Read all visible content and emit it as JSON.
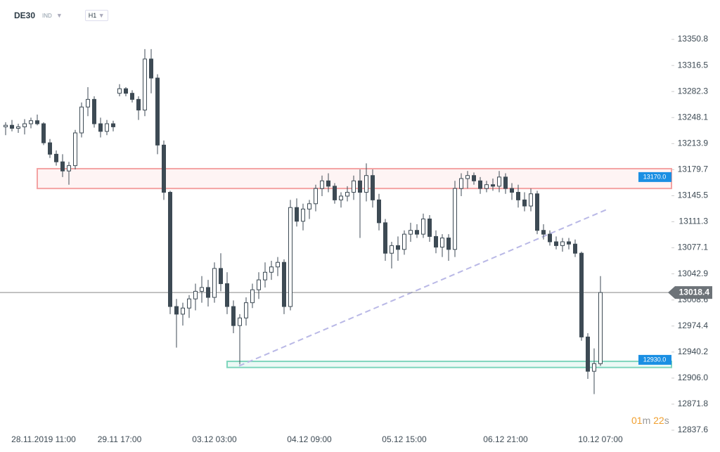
{
  "header": {
    "symbol": "DE30",
    "market": "IND",
    "interval": "H1"
  },
  "timer": {
    "minutes": "01",
    "minutes_unit": "m",
    "seconds": "22",
    "seconds_unit": "s"
  },
  "chart_data": {
    "type": "candlestick",
    "categories": [
      null,
      null,
      null,
      null,
      null,
      null,
      "28.11.2019  11:00",
      null,
      null,
      null,
      null,
      null,
      null,
      null,
      null,
      null,
      null,
      null,
      "29.11  17:00",
      null,
      null,
      null,
      null,
      null,
      null,
      null,
      null,
      null,
      null,
      null,
      null,
      null,
      null,
      "03.12  03:00",
      null,
      null,
      null,
      null,
      null,
      null,
      null,
      null,
      null,
      null,
      null,
      null,
      null,
      null,
      "04.12  09:00",
      null,
      null,
      null,
      null,
      null,
      null,
      null,
      null,
      null,
      null,
      null,
      null,
      null,
      null,
      "05.12  15:00",
      null,
      null,
      null,
      null,
      null,
      null,
      null,
      null,
      null,
      null,
      null,
      null,
      null,
      null,
      null,
      "06.12  21:00",
      null,
      null,
      null,
      null,
      null,
      null,
      null,
      null,
      null,
      null,
      null,
      null,
      null,
      null,
      "10.12  07:00"
    ],
    "open": [
      13236,
      13238,
      13234,
      13236,
      13240,
      13244,
      13240,
      13215,
      13200,
      13190,
      13178,
      13185,
      13228,
      13262,
      13272,
      13240,
      13230,
      13240,
      13280,
      13286,
      13280,
      13272,
      13258,
      13325,
      13300,
      13212,
      13150,
      13000,
      12990,
      12998,
      13010,
      13020,
      13025,
      13012,
      13050,
      13030,
      13000,
      12975,
      12985,
      13005,
      13022,
      13035,
      13045,
      13052,
      13058,
      13000,
      13130,
      13112,
      13128,
      13135,
      13155,
      13165,
      13158,
      13140,
      13145,
      13150,
      13165,
      13150,
      13172,
      13140,
      13110,
      13070,
      13080,
      13075,
      13095,
      13100,
      13095,
      13115,
      13092,
      13078,
      13090,
      13075,
      13155,
      13168,
      13172,
      13165,
      13155,
      13160,
      13158,
      13170,
      13155,
      13150,
      13140,
      13132,
      13148,
      13100,
      13095,
      13085,
      13080,
      13085,
      13082,
      13070,
      12960,
      12915,
      12925
    ],
    "high": [
      13242,
      13245,
      13240,
      13246,
      13248,
      13252,
      13242,
      13220,
      13205,
      13200,
      13190,
      13232,
      13268,
      13288,
      13276,
      13248,
      13245,
      13244,
      13292,
      13288,
      13284,
      13276,
      13338,
      13338,
      13305,
      13218,
      13152,
      13010,
      13005,
      13015,
      13030,
      13040,
      13035,
      13058,
      13070,
      13045,
      13008,
      12990,
      13012,
      13030,
      13045,
      13058,
      13060,
      13065,
      13062,
      13140,
      13142,
      13135,
      13140,
      13160,
      13172,
      13175,
      13162,
      13150,
      13158,
      13172,
      13180,
      13188,
      13180,
      13148,
      13115,
      13085,
      13092,
      13100,
      13110,
      13108,
      13122,
      13120,
      13100,
      13095,
      13095,
      13165,
      13175,
      13178,
      13176,
      13170,
      13165,
      13168,
      13178,
      13175,
      13162,
      13160,
      13150,
      13155,
      13152,
      13108,
      13100,
      13092,
      13090,
      13090,
      13088,
      13072,
      12965,
      12945,
      13040
    ],
    "low": [
      13225,
      13230,
      13228,
      13226,
      13234,
      13238,
      13212,
      13195,
      13185,
      13170,
      13160,
      13180,
      13222,
      13250,
      13235,
      13222,
      13225,
      13230,
      13276,
      13276,
      13268,
      13245,
      13250,
      13280,
      13200,
      13140,
      12990,
      12946,
      12975,
      12985,
      12995,
      13005,
      13000,
      13005,
      13020,
      12990,
      12965,
      12924,
      12975,
      12998,
      13010,
      13025,
      13035,
      13040,
      12990,
      12995,
      13105,
      13100,
      13115,
      13125,
      13145,
      13150,
      13135,
      13130,
      13138,
      13140,
      13090,
      13138,
      13130,
      13100,
      13060,
      13050,
      13060,
      13068,
      13085,
      13090,
      13090,
      13085,
      13070,
      13065,
      13060,
      13065,
      13145,
      13155,
      13160,
      13148,
      13150,
      13152,
      13150,
      13148,
      13140,
      13130,
      13125,
      13125,
      13095,
      13088,
      13080,
      13075,
      13072,
      13075,
      13065,
      12955,
      12905,
      12885,
      12922
    ],
    "close": [
      13238,
      13234,
      13236,
      13240,
      13244,
      13240,
      13215,
      13200,
      13190,
      13178,
      13185,
      13228,
      13262,
      13272,
      13240,
      13230,
      13240,
      13236,
      13286,
      13280,
      13272,
      13258,
      13325,
      13300,
      13212,
      13150,
      13000,
      12990,
      12998,
      13010,
      13020,
      13025,
      13012,
      13050,
      13030,
      13000,
      12975,
      12985,
      13005,
      13022,
      13035,
      13045,
      13052,
      13058,
      13000,
      13130,
      13112,
      13128,
      13135,
      13155,
      13165,
      13158,
      13140,
      13145,
      13150,
      13165,
      13150,
      13172,
      13140,
      13110,
      13070,
      13080,
      13075,
      13095,
      13100,
      13095,
      13115,
      13092,
      13078,
      13090,
      13075,
      13155,
      13168,
      13172,
      13165,
      13155,
      13160,
      13158,
      13170,
      13155,
      13150,
      13140,
      13132,
      13148,
      13100,
      13095,
      13085,
      13080,
      13085,
      13082,
      13070,
      12960,
      12915,
      12925,
      13018.4
    ],
    "up_color": "#ffffff",
    "down_color": "#3d4a54",
    "ylim": [
      12837.6,
      13350.8
    ],
    "yticks": [
      12837.6,
      12871.8,
      {
        "value": 12906,
        "label": "12906.0"
      },
      12940.2,
      12974.4,
      13008.6,
      13042.9,
      13077.1,
      13111.3,
      13145.5,
      13179.7,
      13213.9,
      13248.1,
      13282.3,
      13316.5,
      13350.8
    ],
    "last_price": 13018.4,
    "zones": [
      {
        "low": 13155,
        "high": 13181,
        "label": {
          "value": 13170,
          "label": "13170.0"
        },
        "color": "#f4a3a3"
      },
      {
        "low": 12920,
        "high": 12928,
        "label": {
          "value": 12930,
          "label": "12930.0"
        },
        "color": "#7fd6bd"
      }
    ],
    "trendline": {
      "from": 12922,
      "to": 13127,
      "color": "#b9b8e6"
    }
  }
}
